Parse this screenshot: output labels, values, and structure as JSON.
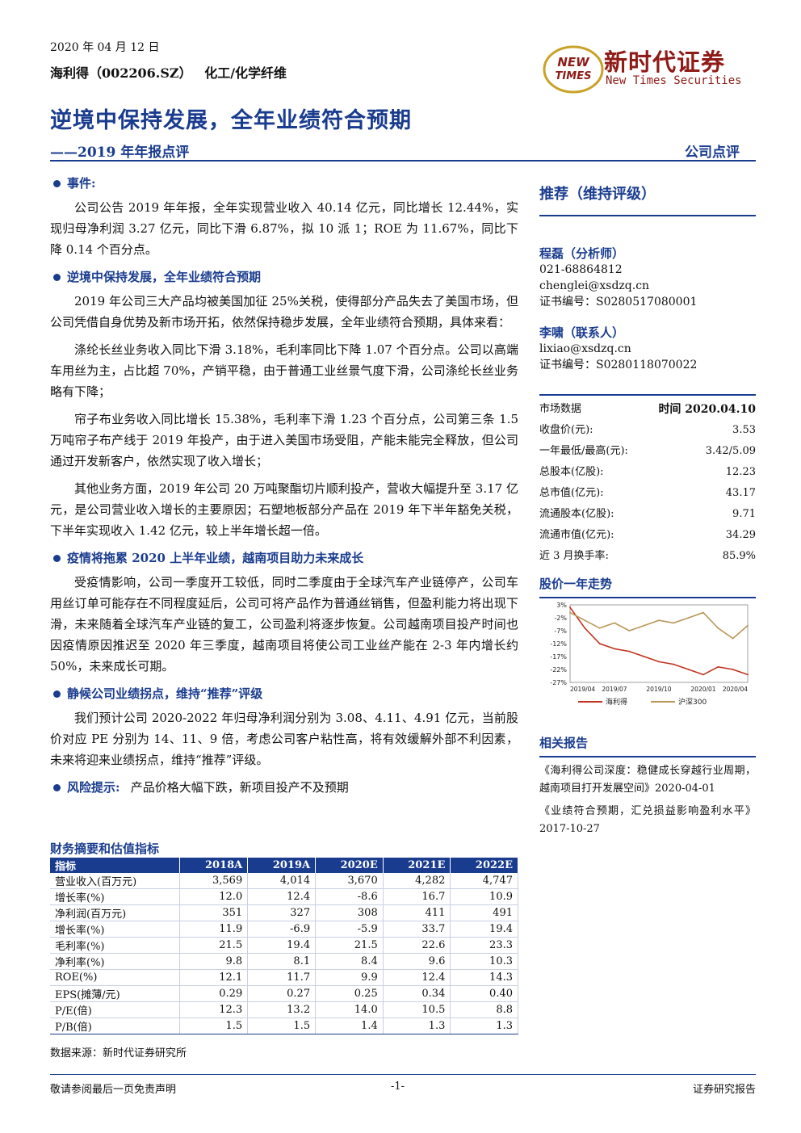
{
  "header": {
    "date": "2020 年 04 月 12 日",
    "stock": "海利得（002206.SZ）",
    "sector": "化工/化学纤维",
    "logo_mark_line1": "NEW",
    "logo_mark_line2": "TIMES",
    "logo_cn": "新时代证券",
    "logo_en": "New Times Securities"
  },
  "title": "逆境中保持发展，全年业绩符合预期",
  "subtitle": "——2019 年年报点评",
  "doc_type": "公司点评",
  "sections": [
    {
      "heading": "事件:",
      "paragraphs": [
        "公司公告 2019 年年报，全年实现营业收入 40.14 亿元，同比增长 12.44%，实现归母净利润 3.27 亿元，同比下滑 6.87%，拟 10 派 1；ROE 为 11.67%，同比下降 0.14 个百分点。"
      ]
    },
    {
      "heading": "逆境中保持发展，全年业绩符合预期",
      "paragraphs": [
        "2019 年公司三大产品均被美国加征 25%关税，使得部分产品失去了美国市场，但公司凭借自身优势及新市场开拓，依然保持稳步发展，全年业绩符合预期，具体来看：",
        "涤纶长丝业务收入同比下滑 3.18%，毛利率同比下降 1.07 个百分点。公司以高端车用丝为主，占比超 70%，产销平稳，由于普通工业丝景气度下滑，公司涤纶长丝业务略有下降；",
        "帘子布业务收入同比增长 15.38%，毛利率下滑 1.23 个百分点，公司第三条 1.5 万吨帘子布产线于 2019 年投产，由于进入美国市场受阻，产能未能完全释放，但公司通过开发新客户，依然实现了收入增长；",
        "其他业务方面，2019 年公司 20 万吨聚酯切片顺利投产，营收大幅提升至 3.17 亿元，是公司营业收入增长的主要原因；石塑地板部分产品在 2019 年下半年豁免关税，下半年实现收入 1.42 亿元，较上半年增长超一倍。"
      ]
    },
    {
      "heading": "疫情将拖累 2020 上半年业绩，越南项目助力未来成长",
      "paragraphs": [
        "受疫情影响，公司一季度开工较低，同时二季度由于全球汽车产业链停产，公司车用丝订单可能存在不同程度延后，公司可将产品作为普通丝销售，但盈利能力将出现下滑，未来随着全球汽车产业链的复工，公司盈利将逐步恢复。公司越南项目投产时间也因疫情原因推迟至 2020 年三季度，越南项目将使公司工业丝产能在 2-3 年内增长约 50%，未来成长可期。"
      ]
    },
    {
      "heading": "静候公司业绩拐点，维持“推荐”评级",
      "paragraphs": [
        "我们预计公司 2020-2022 年归母净利润分别为 3.08、4.11、4.91 亿元，当前股价对应 PE 分别为 14、11、9 倍，考虑公司客户粘性高，将有效缓解外部不利因素，未来将迎来业绩拐点，维持“推荐”评级。"
      ]
    }
  ],
  "risk": {
    "label": "风险提示:",
    "text": "产品价格大幅下跌，新项目投产不及预期"
  },
  "rating": "推荐（维持评级）",
  "analysts": [
    {
      "name": "程磊（分析师）",
      "lines": [
        "021-68864812",
        "chenglei@xsdzq.cn",
        "证书编号：S0280517080001"
      ]
    },
    {
      "name": "李啸（联系人）",
      "lines": [
        "lixiao@xsdzq.cn",
        "证书编号：S0280118070022"
      ]
    }
  ],
  "market": {
    "head_left": "市场数据",
    "head_right": "时间  2020.04.10",
    "rows": [
      {
        "label": "收盘价(元):",
        "value": "3.53"
      },
      {
        "label": "一年最低/最高(元):",
        "value": "3.42/5.09"
      },
      {
        "label": "总股本(亿股):",
        "value": "12.23"
      },
      {
        "label": "总市值(亿元):",
        "value": "43.17"
      },
      {
        "label": "流通股本(亿股):",
        "value": "9.71"
      },
      {
        "label": "流通市值(亿元):",
        "value": "34.29"
      },
      {
        "label": "近 3 月换手率:",
        "value": "85.9%"
      }
    ]
  },
  "chart_title": "股价一年走势",
  "chart_data": {
    "type": "line",
    "x": [
      "2019/04",
      "2019/05",
      "2019/06",
      "2019/07",
      "2019/08",
      "2019/09",
      "2019/10",
      "2019/11",
      "2019/12",
      "2020/01",
      "2020/02",
      "2020/03",
      "2020/04"
    ],
    "xticks": [
      "2019/04",
      "2019/07",
      "2019/10",
      "2020/01",
      "2020/04"
    ],
    "yticks": [
      "3%",
      "-2%",
      "-7%",
      "-12%",
      "-17%",
      "-22%",
      "-27%"
    ],
    "ylim": [
      -27,
      3
    ],
    "series": [
      {
        "name": "海利得",
        "color": "#c0321e",
        "values": [
          2,
          -6,
          -12,
          -14,
          -15,
          -17,
          -19,
          -20,
          -22,
          -24,
          -21,
          -22,
          -24
        ]
      },
      {
        "name": "沪深300",
        "color": "#b8975a",
        "values": [
          0,
          -3,
          -6,
          -4,
          -7,
          -5,
          -3,
          -4,
          -2,
          0,
          -6,
          -10,
          -5
        ]
      }
    ]
  },
  "related": {
    "title": "相关报告",
    "items": [
      "《海利得公司深度：稳健成长穿越行业周期，越南项目打开发展空间》2020-04-01",
      "《业绩符合预期，汇兑损益影响盈利水平》2017-10-27"
    ]
  },
  "financial": {
    "title": "财务摘要和估值指标",
    "columns": [
      "指标",
      "2018A",
      "2019A",
      "2020E",
      "2021E",
      "2022E"
    ],
    "rows": [
      [
        "营业收入(百万元)",
        "3,569",
        "4,014",
        "3,670",
        "4,282",
        "4,747"
      ],
      [
        "增长率(%)",
        "12.0",
        "12.4",
        "-8.6",
        "16.7",
        "10.9"
      ],
      [
        "净利润(百万元)",
        "351",
        "327",
        "308",
        "411",
        "491"
      ],
      [
        "增长率(%)",
        "11.9",
        "-6.9",
        "-5.9",
        "33.7",
        "19.4"
      ],
      [
        "毛利率(%)",
        "21.5",
        "19.4",
        "21.5",
        "22.6",
        "23.3"
      ],
      [
        "净利率(%)",
        "9.8",
        "8.1",
        "8.4",
        "9.6",
        "10.3"
      ],
      [
        "ROE(%)",
        "12.1",
        "11.7",
        "9.9",
        "12.4",
        "14.3"
      ],
      [
        "EPS(摊薄/元)",
        "0.29",
        "0.27",
        "0.25",
        "0.34",
        "0.40"
      ],
      [
        "P/E(倍)",
        "12.3",
        "13.2",
        "14.0",
        "10.5",
        "8.8"
      ],
      [
        "P/B(倍)",
        "1.5",
        "1.5",
        "1.4",
        "1.3",
        "1.3"
      ]
    ],
    "source": "数据来源：新时代证券研究所"
  },
  "footer": {
    "left": "敬请参阅最后一页免责声明",
    "center": "-1-",
    "right": "证券研究报告"
  }
}
